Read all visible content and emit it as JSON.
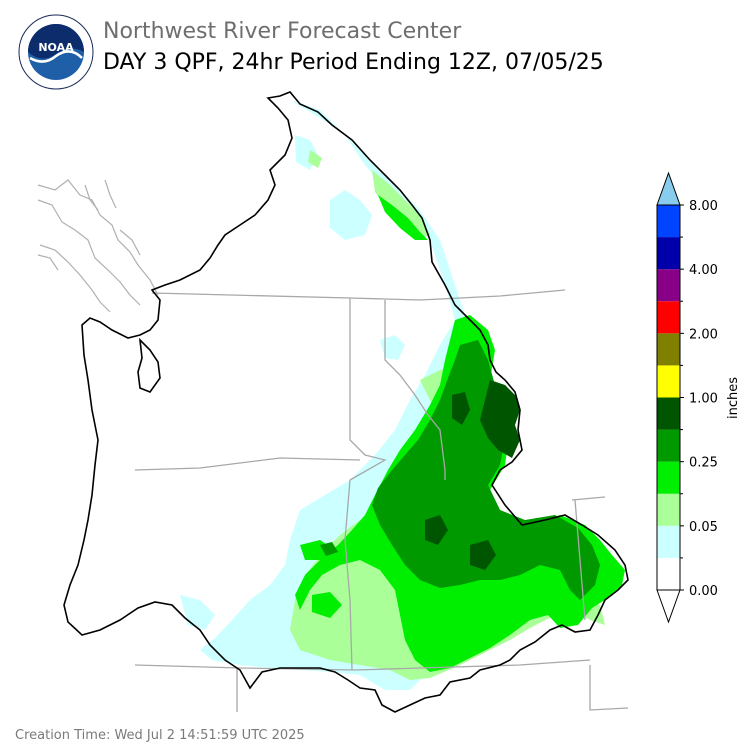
{
  "header": {
    "organization": "Northwest River Forecast Center",
    "title": "DAY 3 QPF, 24hr Period Ending 12Z, 07/05/25"
  },
  "logo": {
    "center_text": "NOAA",
    "ring_text": "NATIONAL OCEANIC AND ATMOSPHERIC ADMINISTRATION · U.S. DEPARTMENT OF COMMERCE"
  },
  "footer": {
    "creation_time": "Creation Time: Wed Jul 2 14:51:59 UTC 2025"
  },
  "legend": {
    "unit_label": "inches",
    "tick_labels": [
      "8.00",
      "4.00",
      "2.00",
      "1.00",
      "0.25",
      "0.05",
      "0.00"
    ],
    "bins_bottom_to_top": [
      "#ffffff",
      "#ccffff",
      "#aaff99",
      "#00ee00",
      "#009900",
      "#005500",
      "#ffff00",
      "#808000",
      "#ff0000",
      "#880088",
      "#0000aa",
      "#0044ff"
    ],
    "top_arrow_color": "#88ccee",
    "bottom_arrow_color": "#ffffff"
  },
  "map_colors": {
    "boundary": "#000000",
    "state_lines": "#a8a8a8",
    "coast": "#b0b0b0"
  }
}
